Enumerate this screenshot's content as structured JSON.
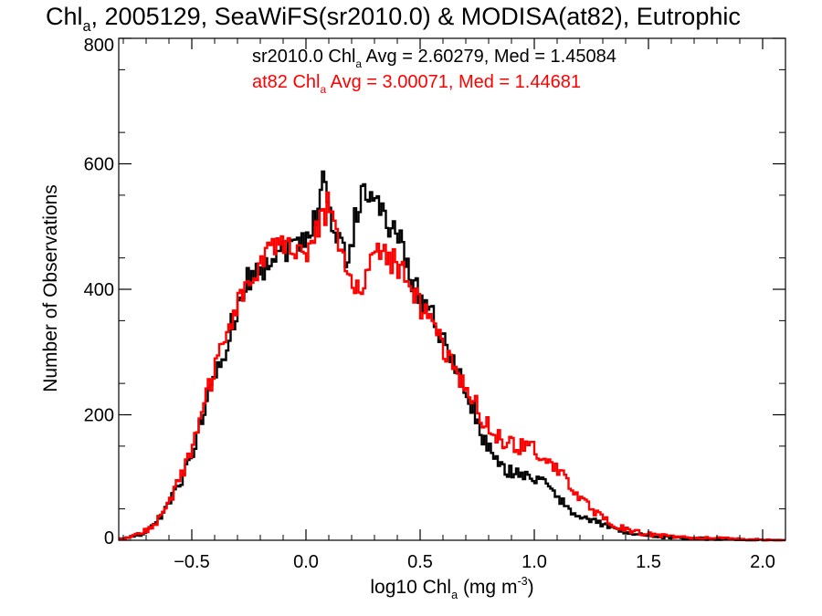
{
  "chart_data": {
    "type": "histogram-step",
    "title": {
      "pre": "Chl",
      "sub": "a",
      "post": ", 2005129, SeaWiFS(sr2010.0) & MODISA(at82), Eutrophic"
    },
    "xlabel": {
      "pre": "log10 Chl",
      "sub": "a",
      "post": " (mg m",
      "sup": "-3",
      "end": ")"
    },
    "ylabel": "Number of Observations",
    "xlim": [
      -0.82,
      2.1
    ],
    "ylim": [
      0,
      800
    ],
    "xticks": [
      -0.5,
      0.0,
      0.5,
      1.0,
      1.5,
      2.0
    ],
    "xtick_labels": [
      "−0.5",
      "0.0",
      "0.5",
      "1.0",
      "1.5",
      "2.0"
    ],
    "yticks": [
      0,
      200,
      400,
      600,
      800
    ],
    "ytick_labels": [
      "0",
      "200",
      "400",
      "600",
      "800"
    ],
    "annotations": [
      {
        "pre": "sr2010.0 Chl",
        "sub": "a",
        "post": " Avg = 2.60279, Med = 1.45084",
        "color": "#000000"
      },
      {
        "pre": "at82 Chl",
        "sub": "a",
        "post": " Avg = 3.00071, Med = 1.44681",
        "color": "#ff0000"
      }
    ],
    "series": [
      {
        "color": "#000000",
        "points": [
          [
            -0.82,
            2
          ],
          [
            -0.78,
            4
          ],
          [
            -0.74,
            8
          ],
          [
            -0.7,
            14
          ],
          [
            -0.66,
            25
          ],
          [
            -0.62,
            45
          ],
          [
            -0.58,
            70
          ],
          [
            -0.54,
            100
          ],
          [
            -0.5,
            135
          ],
          [
            -0.46,
            195
          ],
          [
            -0.42,
            235
          ],
          [
            -0.38,
            275
          ],
          [
            -0.34,
            325
          ],
          [
            -0.3,
            375
          ],
          [
            -0.26,
            415
          ],
          [
            -0.22,
            425
          ],
          [
            -0.18,
            440
          ],
          [
            -0.14,
            455
          ],
          [
            -0.1,
            465
          ],
          [
            -0.06,
            470
          ],
          [
            -0.02,
            480
          ],
          [
            0.02,
            495
          ],
          [
            0.06,
            540
          ],
          [
            0.08,
            600
          ],
          [
            0.1,
            520
          ],
          [
            0.14,
            485
          ],
          [
            0.18,
            440
          ],
          [
            0.22,
            520
          ],
          [
            0.26,
            560
          ],
          [
            0.3,
            560
          ],
          [
            0.34,
            510
          ],
          [
            0.38,
            500
          ],
          [
            0.42,
            470
          ],
          [
            0.46,
            420
          ],
          [
            0.5,
            390
          ],
          [
            0.54,
            370
          ],
          [
            0.58,
            340
          ],
          [
            0.62,
            300
          ],
          [
            0.66,
            270
          ],
          [
            0.7,
            240
          ],
          [
            0.74,
            200
          ],
          [
            0.78,
            160
          ],
          [
            0.82,
            130
          ],
          [
            0.86,
            115
          ],
          [
            0.9,
            110
          ],
          [
            0.94,
            108
          ],
          [
            0.98,
            100
          ],
          [
            1.02,
            95
          ],
          [
            1.06,
            85
          ],
          [
            1.1,
            70
          ],
          [
            1.14,
            55
          ],
          [
            1.18,
            45
          ],
          [
            1.22,
            35
          ],
          [
            1.26,
            30
          ],
          [
            1.3,
            25
          ],
          [
            1.34,
            20
          ],
          [
            1.38,
            15
          ],
          [
            1.42,
            12
          ],
          [
            1.46,
            10
          ],
          [
            1.5,
            8
          ],
          [
            1.55,
            6
          ],
          [
            1.6,
            4
          ],
          [
            1.7,
            3
          ],
          [
            1.8,
            2
          ],
          [
            1.9,
            1
          ],
          [
            2.1,
            0
          ]
        ]
      },
      {
        "color": "#ff0000",
        "points": [
          [
            -0.82,
            2
          ],
          [
            -0.78,
            4
          ],
          [
            -0.74,
            8
          ],
          [
            -0.7,
            15
          ],
          [
            -0.66,
            27
          ],
          [
            -0.62,
            48
          ],
          [
            -0.58,
            75
          ],
          [
            -0.54,
            105
          ],
          [
            -0.5,
            145
          ],
          [
            -0.46,
            205
          ],
          [
            -0.42,
            245
          ],
          [
            -0.38,
            290
          ],
          [
            -0.34,
            340
          ],
          [
            -0.3,
            380
          ],
          [
            -0.26,
            405
          ],
          [
            -0.22,
            420
          ],
          [
            -0.18,
            445
          ],
          [
            -0.14,
            470
          ],
          [
            -0.1,
            475
          ],
          [
            -0.06,
            475
          ],
          [
            -0.02,
            460
          ],
          [
            0.02,
            470
          ],
          [
            0.06,
            500
          ],
          [
            0.1,
            540
          ],
          [
            0.14,
            470
          ],
          [
            0.18,
            420
          ],
          [
            0.22,
            415
          ],
          [
            0.26,
            410
          ],
          [
            0.3,
            455
          ],
          [
            0.34,
            470
          ],
          [
            0.38,
            445
          ],
          [
            0.42,
            430
          ],
          [
            0.46,
            400
          ],
          [
            0.5,
            375
          ],
          [
            0.54,
            350
          ],
          [
            0.58,
            320
          ],
          [
            0.62,
            290
          ],
          [
            0.66,
            260
          ],
          [
            0.7,
            245
          ],
          [
            0.74,
            220
          ],
          [
            0.78,
            190
          ],
          [
            0.82,
            170
          ],
          [
            0.86,
            160
          ],
          [
            0.9,
            150
          ],
          [
            0.94,
            150
          ],
          [
            0.98,
            150
          ],
          [
            1.02,
            140
          ],
          [
            1.06,
            125
          ],
          [
            1.1,
            110
          ],
          [
            1.14,
            95
          ],
          [
            1.18,
            80
          ],
          [
            1.22,
            60
          ],
          [
            1.26,
            45
          ],
          [
            1.3,
            35
          ],
          [
            1.34,
            25
          ],
          [
            1.38,
            20
          ],
          [
            1.42,
            15
          ],
          [
            1.46,
            12
          ],
          [
            1.5,
            10
          ],
          [
            1.55,
            8
          ],
          [
            1.6,
            6
          ],
          [
            1.65,
            5
          ],
          [
            1.7,
            4
          ],
          [
            1.8,
            3
          ],
          [
            1.9,
            2
          ],
          [
            2.0,
            1
          ],
          [
            2.1,
            0
          ]
        ]
      }
    ]
  }
}
